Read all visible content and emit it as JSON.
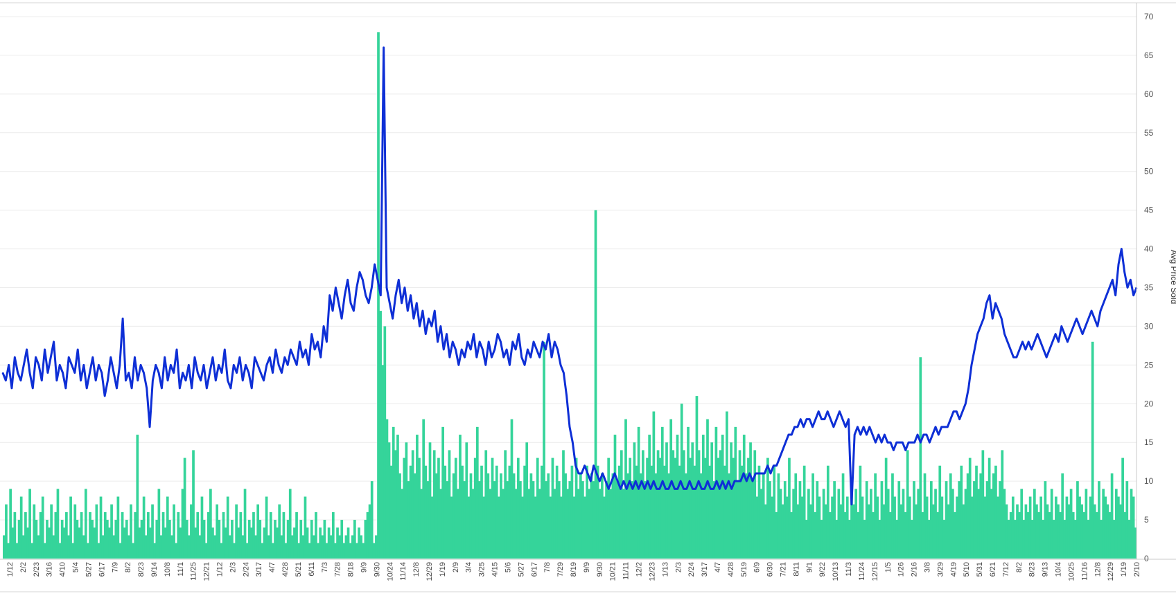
{
  "chart_data": {
    "type": "bar+line",
    "title": "",
    "xlabel": "",
    "ylabel": "Avg Price Sold",
    "ylim": [
      0,
      70
    ],
    "y_ticks": [
      0,
      5,
      10,
      15,
      20,
      25,
      30,
      35,
      40,
      45,
      50,
      55,
      60,
      65,
      70
    ],
    "grid": "horizontal",
    "legend": "none",
    "x_tick_labels": [
      "1/12",
      "2/2",
      "2/23",
      "3/16",
      "4/10",
      "5/4",
      "5/27",
      "6/17",
      "7/9",
      "8/2",
      "8/23",
      "9/14",
      "10/8",
      "11/1",
      "11/25",
      "12/21",
      "1/12",
      "2/3",
      "2/24",
      "3/17",
      "4/7",
      "4/28",
      "5/21",
      "6/11",
      "7/3",
      "7/28",
      "8/18",
      "9/9",
      "9/30",
      "10/24",
      "11/14",
      "12/8",
      "12/29",
      "1/19",
      "2/9",
      "3/4",
      "3/25",
      "4/15",
      "5/6",
      "5/27",
      "6/17",
      "7/8",
      "7/29",
      "8/19",
      "9/9",
      "9/30",
      "10/21",
      "11/11",
      "12/2",
      "12/23",
      "1/13",
      "2/3",
      "2/24",
      "3/17",
      "4/7",
      "4/28",
      "5/19",
      "6/9",
      "6/30",
      "7/21",
      "8/11",
      "9/1",
      "9/22",
      "10/13",
      "11/3",
      "11/24",
      "12/15",
      "1/5",
      "1/26",
      "2/16",
      "3/8",
      "3/29",
      "4/19",
      "5/10",
      "5/31",
      "6/21",
      "7/12",
      "8/2",
      "8/23",
      "9/13",
      "10/4",
      "10/25",
      "11/16",
      "12/8",
      "12/29",
      "1/19",
      "2/10"
    ],
    "series": [
      {
        "type": "bar",
        "color": "#35d49a",
        "values": [
          3,
          7,
          2,
          9,
          4,
          6,
          2,
          5,
          8,
          3,
          6,
          4,
          9,
          2,
          7,
          5,
          3,
          6,
          8,
          2,
          5,
          4,
          7,
          3,
          6,
          9,
          2,
          5,
          4,
          6,
          3,
          8,
          2,
          7,
          5,
          4,
          6,
          3,
          9,
          2,
          6,
          5,
          4,
          7,
          2,
          8,
          3,
          6,
          5,
          4,
          7,
          3,
          5,
          8,
          2,
          6,
          4,
          5,
          3,
          7,
          2,
          6,
          16,
          4,
          5,
          8,
          3,
          6,
          4,
          7,
          2,
          5,
          9,
          3,
          6,
          4,
          8,
          5,
          3,
          7,
          2,
          6,
          4,
          9,
          13,
          5,
          3,
          7,
          14,
          4,
          6,
          3,
          8,
          5,
          2,
          6,
          9,
          4,
          3,
          7,
          5,
          2,
          6,
          4,
          8,
          3,
          5,
          2,
          7,
          4,
          6,
          3,
          9,
          2,
          5,
          4,
          6,
          3,
          7,
          5,
          2,
          4,
          8,
          3,
          6,
          2,
          5,
          4,
          7,
          3,
          6,
          2,
          5,
          9,
          3,
          4,
          6,
          2,
          5,
          3,
          8,
          4,
          2,
          5,
          3,
          6,
          2,
          4,
          3,
          5,
          2,
          4,
          3,
          6,
          2,
          4,
          3,
          5,
          2,
          3,
          4,
          2,
          3,
          5,
          2,
          4,
          3,
          2,
          5,
          6,
          7,
          10,
          2,
          3,
          68,
          32,
          25,
          30,
          18,
          15,
          12,
          17,
          14,
          16,
          11,
          9,
          13,
          15,
          10,
          12,
          14,
          11,
          16,
          13,
          9,
          18,
          12,
          10,
          15,
          8,
          14,
          11,
          13,
          9,
          17,
          12,
          10,
          14,
          8,
          11,
          13,
          9,
          16,
          12,
          10,
          15,
          8,
          11,
          9,
          13,
          17,
          10,
          12,
          8,
          14,
          11,
          9,
          13,
          10,
          12,
          8,
          11,
          9,
          14,
          10,
          12,
          18,
          11,
          9,
          13,
          10,
          8,
          12,
          15,
          9,
          11,
          10,
          8,
          13,
          9,
          12,
          28,
          10,
          11,
          8,
          13,
          9,
          12,
          10,
          8,
          14,
          11,
          9,
          10,
          12,
          8,
          13,
          9,
          11,
          10,
          8,
          12,
          9,
          11,
          10,
          45,
          12,
          9,
          11,
          8,
          10,
          13,
          9,
          11,
          16,
          10,
          12,
          14,
          9,
          18,
          11,
          13,
          10,
          15,
          12,
          17,
          11,
          14,
          10,
          13,
          16,
          12,
          19,
          11,
          14,
          13,
          17,
          12,
          15,
          11,
          18,
          14,
          13,
          16,
          12,
          20,
          14,
          11,
          17,
          13,
          15,
          12,
          21,
          14,
          11,
          16,
          13,
          18,
          12,
          15,
          10,
          17,
          13,
          14,
          16,
          12,
          19,
          11,
          15,
          13,
          17,
          10,
          14,
          12,
          16,
          11,
          13,
          15,
          10,
          14,
          8,
          12,
          9,
          11,
          7,
          13,
          10,
          8,
          12,
          6,
          11,
          9,
          7,
          10,
          8,
          13,
          6,
          9,
          11,
          7,
          10,
          8,
          12,
          5,
          9,
          7,
          11,
          6,
          10,
          8,
          5,
          9,
          7,
          12,
          6,
          8,
          10,
          5,
          9,
          7,
          11,
          6,
          8,
          5,
          10,
          7,
          9,
          6,
          12,
          8,
          5,
          10,
          7,
          9,
          6,
          11,
          8,
          5,
          10,
          7,
          13,
          9,
          6,
          11,
          8,
          5,
          10,
          7,
          9,
          6,
          14,
          8,
          5,
          10,
          7,
          9,
          26,
          6,
          11,
          8,
          5,
          10,
          7,
          9,
          6,
          12,
          8,
          5,
          10,
          7,
          11,
          9,
          6,
          8,
          10,
          12,
          7,
          9,
          11,
          13,
          8,
          10,
          12,
          9,
          11,
          14,
          8,
          10,
          13,
          9,
          11,
          12,
          8,
          10,
          14,
          9,
          7,
          5,
          6,
          8,
          5,
          7,
          6,
          9,
          5,
          7,
          6,
          8,
          5,
          9,
          7,
          6,
          8,
          5,
          10,
          7,
          6,
          9,
          5,
          8,
          7,
          6,
          11,
          5,
          8,
          7,
          9,
          6,
          5,
          10,
          8,
          7,
          6,
          9,
          5,
          8,
          28,
          7,
          6,
          10,
          5,
          9,
          8,
          7,
          6,
          11,
          5,
          9,
          8,
          7,
          13,
          6,
          10,
          5,
          9,
          8,
          4
        ]
      },
      {
        "type": "line",
        "color": "#0e2fd6",
        "values": [
          24,
          23,
          25,
          22,
          26,
          24,
          23,
          25,
          27,
          24,
          22,
          26,
          25,
          23,
          27,
          24,
          26,
          28,
          23,
          25,
          24,
          22,
          26,
          25,
          24,
          27,
          23,
          25,
          22,
          24,
          26,
          23,
          25,
          24,
          21,
          23,
          26,
          24,
          22,
          25,
          31,
          23,
          24,
          22,
          26,
          23,
          25,
          24,
          22,
          17,
          23,
          25,
          24,
          22,
          26,
          23,
          25,
          24,
          27,
          22,
          24,
          23,
          25,
          22,
          26,
          24,
          23,
          25,
          22,
          24,
          26,
          23,
          25,
          24,
          27,
          23,
          22,
          25,
          24,
          26,
          23,
          25,
          24,
          22,
          26,
          25,
          24,
          23,
          25,
          26,
          24,
          27,
          25,
          24,
          26,
          25,
          27,
          26,
          25,
          28,
          26,
          27,
          25,
          29,
          27,
          28,
          26,
          30,
          28,
          34,
          32,
          35,
          33,
          31,
          34,
          36,
          33,
          32,
          35,
          37,
          36,
          34,
          33,
          35,
          38,
          36,
          34,
          66,
          35,
          33,
          31,
          34,
          36,
          33,
          35,
          32,
          34,
          31,
          33,
          30,
          32,
          29,
          31,
          30,
          32,
          28,
          30,
          27,
          29,
          26,
          28,
          27,
          25,
          27,
          26,
          28,
          27,
          29,
          26,
          28,
          27,
          25,
          28,
          26,
          27,
          29,
          28,
          26,
          27,
          25,
          28,
          27,
          29,
          26,
          25,
          27,
          26,
          28,
          27,
          26,
          28,
          27,
          29,
          26,
          28,
          27,
          25,
          24,
          21,
          17,
          15,
          12,
          11,
          11,
          12,
          11,
          10,
          12,
          11,
          10,
          11,
          10,
          9,
          10,
          11,
          10,
          9,
          10,
          9,
          10,
          9,
          10,
          9,
          10,
          9,
          10,
          9,
          10,
          9,
          9,
          10,
          9,
          9,
          10,
          9,
          9,
          10,
          9,
          9,
          10,
          9,
          9,
          10,
          9,
          9,
          10,
          9,
          9,
          10,
          9,
          10,
          9,
          10,
          9,
          10,
          10,
          10,
          11,
          10,
          11,
          10,
          11,
          11,
          11,
          11,
          12,
          11,
          12,
          12,
          13,
          14,
          15,
          16,
          16,
          17,
          17,
          18,
          17,
          18,
          18,
          17,
          18,
          19,
          18,
          18,
          19,
          18,
          17,
          18,
          19,
          18,
          17,
          18,
          7,
          16,
          17,
          16,
          17,
          16,
          17,
          16,
          15,
          16,
          15,
          16,
          15,
          15,
          14,
          15,
          15,
          15,
          14,
          15,
          15,
          15,
          16,
          15,
          16,
          16,
          15,
          16,
          17,
          16,
          17,
          17,
          17,
          18,
          19,
          19,
          18,
          19,
          20,
          22,
          25,
          27,
          29,
          30,
          31,
          33,
          34,
          31,
          33,
          32,
          31,
          29,
          28,
          27,
          26,
          26,
          27,
          28,
          27,
          28,
          27,
          28,
          29,
          28,
          27,
          26,
          27,
          28,
          29,
          28,
          30,
          29,
          28,
          29,
          30,
          31,
          30,
          29,
          30,
          31,
          32,
          31,
          30,
          32,
          33,
          34,
          35,
          36,
          34,
          38,
          40,
          37,
          35,
          36,
          34,
          35
        ]
      }
    ]
  }
}
